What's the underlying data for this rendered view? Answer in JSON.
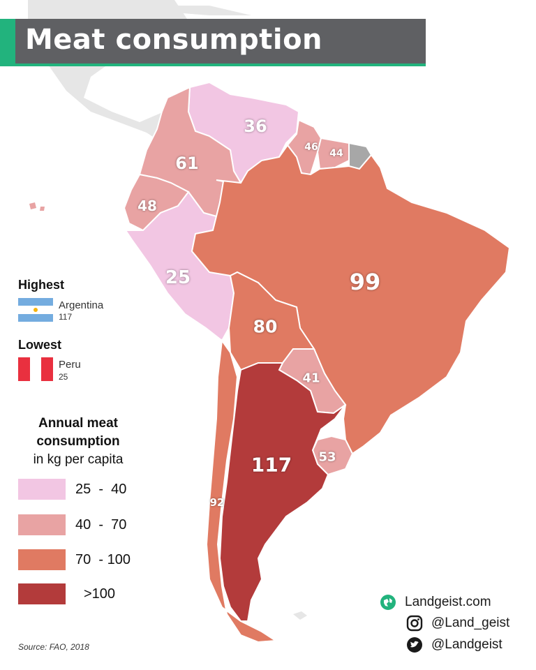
{
  "title": "Meat consumption",
  "highest": {
    "heading": "Highest",
    "country": "Argentina",
    "value": "117"
  },
  "lowest": {
    "heading": "Lowest",
    "country": "Peru",
    "value": "25"
  },
  "legend": {
    "title_line1": "Annual meat",
    "title_line2": "consumption",
    "title_line3": "in kg per capita",
    "classes": [
      {
        "label": "25  -  40",
        "color": "#f2c6e3"
      },
      {
        "label": "40  -  70",
        "color": "#e8a3a3"
      },
      {
        "label": "70  - 100",
        "color": "#e07a62"
      },
      {
        "label": ">100",
        "color": "#b33b3b"
      }
    ]
  },
  "countries": [
    {
      "name": "Venezuela",
      "value": "36",
      "class": 0
    },
    {
      "name": "Guyana",
      "value": "46",
      "class": 1
    },
    {
      "name": "Suriname",
      "value": "44",
      "class": 1
    },
    {
      "name": "Colombia",
      "value": "61",
      "class": 1
    },
    {
      "name": "Ecuador",
      "value": "48",
      "class": 1
    },
    {
      "name": "Peru",
      "value": "25",
      "class": 0
    },
    {
      "name": "Brazil",
      "value": "99",
      "class": 2
    },
    {
      "name": "Bolivia",
      "value": "80",
      "class": 2
    },
    {
      "name": "Paraguay",
      "value": "41",
      "class": 1
    },
    {
      "name": "Uruguay",
      "value": "53",
      "class": 1
    },
    {
      "name": "Argentina",
      "value": "117",
      "class": 3
    },
    {
      "name": "Chile",
      "value": "92",
      "class": 2
    }
  ],
  "no_data_color": "#a7a7a7",
  "source": "Source: FAO, 2018",
  "brand": {
    "site": "Landgeist.com",
    "instagram": "@Land_geist",
    "twitter": "@Landgeist"
  },
  "colors": {
    "title_bg": "#5f6063",
    "accent": "#22b37d",
    "background_land": "#e6e6e6"
  }
}
